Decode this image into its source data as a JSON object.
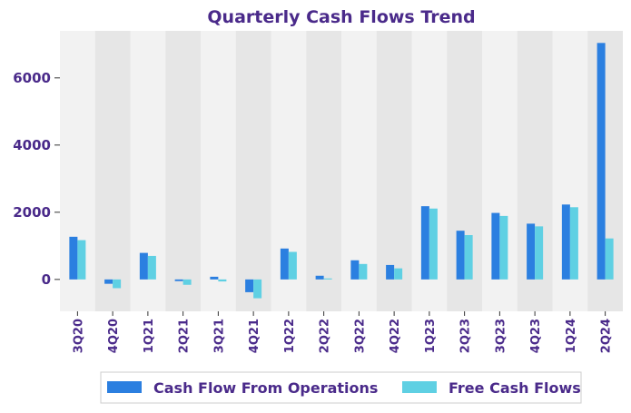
{
  "chart_data": {
    "type": "bar",
    "title": "Quarterly Cash Flows Trend",
    "xlabel": "",
    "ylabel": "",
    "ylim": [
      -950,
      7400
    ],
    "yticks": [
      0,
      2000,
      4000,
      6000
    ],
    "categories": [
      "3Q20",
      "4Q20",
      "1Q21",
      "2Q21",
      "3Q21",
      "4Q21",
      "1Q22",
      "2Q22",
      "3Q22",
      "4Q22",
      "1Q23",
      "2Q23",
      "3Q23",
      "4Q23",
      "1Q24",
      "2Q24"
    ],
    "series": [
      {
        "name": "Cash Flow From Operations",
        "color": "#2b7fe0",
        "values": [
          1270,
          -130,
          790,
          -50,
          80,
          -380,
          920,
          110,
          570,
          430,
          2180,
          1450,
          1980,
          1660,
          2230,
          7040
        ]
      },
      {
        "name": "Free Cash Flows",
        "color": "#5fd0e3",
        "values": [
          1170,
          -260,
          700,
          -160,
          -60,
          -560,
          820,
          30,
          460,
          330,
          2110,
          1320,
          1890,
          1580,
          2150,
          1220
        ]
      }
    ],
    "legend_position": "bottom",
    "colors": {
      "title": "#4a2a8a",
      "tick": "#4a2a8a",
      "band_light": "#f2f2f2",
      "band_dark": "#e6e6e6"
    }
  }
}
